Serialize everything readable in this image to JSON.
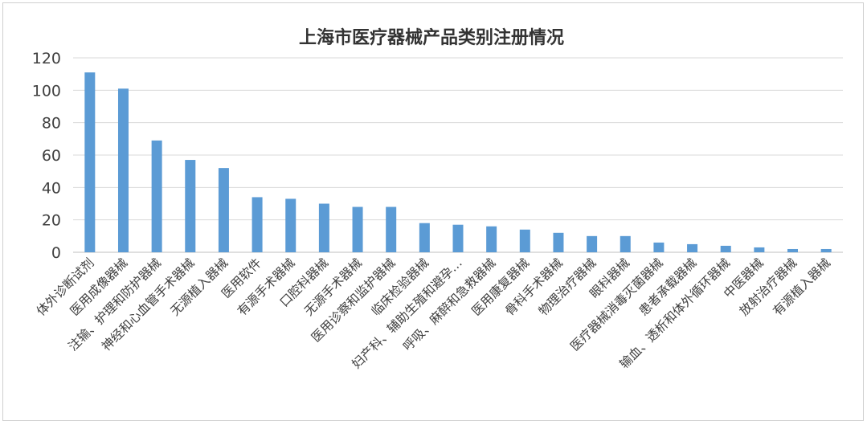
{
  "chart_data": {
    "type": "bar",
    "title": "上海市医疗器械产品类别注册情况",
    "xlabel": "",
    "ylabel": "",
    "ylim": [
      0,
      120
    ],
    "yticks": [
      0,
      20,
      40,
      60,
      80,
      100,
      120
    ],
    "grid": true,
    "legend": "none",
    "bar_color": "#5b9bd5",
    "categories": [
      "体外诊断试剂",
      "医用成像器械",
      "注输、护理和防护器械",
      "神经和心血管手术器械",
      "无源植入器械",
      "医用软件",
      "有源手术器械",
      "口腔科器械",
      "无源手术器械",
      "医用诊察和监护器械",
      "临床检验器械",
      "妇产科、辅助生殖和避孕…",
      "呼吸、麻醉和急救器械",
      "医用康复器械",
      "骨科手术器械",
      "物理治疗器械",
      "眼科器械",
      "医疗器械消毒灭菌器械",
      "患者承载器械",
      "输血、透析和体外循环器械",
      "中医器械",
      "放射治疗器械",
      "有源植入器械"
    ],
    "values": [
      111,
      101,
      69,
      57,
      52,
      34,
      33,
      30,
      28,
      28,
      18,
      17,
      16,
      14,
      12,
      10,
      10,
      6,
      5,
      4,
      3,
      2,
      2
    ]
  }
}
